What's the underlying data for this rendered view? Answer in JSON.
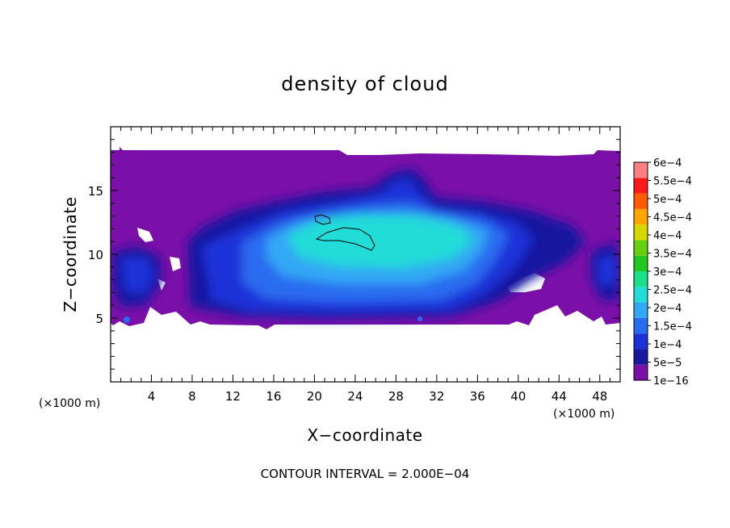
{
  "chart_data": {
    "type": "heatmap",
    "title": "density of cloud",
    "xlabel": "X−coordinate",
    "ylabel": "Z−coordinate",
    "x_unit": "(×1000 m)",
    "y_unit": "(×1000 m)",
    "xlim": [
      0,
      50
    ],
    "ylim": [
      0,
      20
    ],
    "x_ticks": [
      4,
      8,
      12,
      16,
      20,
      24,
      28,
      32,
      36,
      40,
      44,
      48
    ],
    "y_ticks": [
      5,
      10,
      15
    ],
    "footnote": "CONTOUR INTERVAL = 2.000E−04",
    "colorbar": {
      "levels": [
        "1e−16",
        "5e−5",
        "1e−4",
        "1.5e−4",
        "2e−4",
        "2.5e−4",
        "3e−4",
        "3.5e−4",
        "4e−4",
        "4.5e−4",
        "5e−4",
        "5.5e−4",
        "6e−4"
      ],
      "colors": [
        "#7a10a8",
        "#1818a0",
        "#1e30d8",
        "#2a6cf0",
        "#30a8f4",
        "#22dcd8",
        "#1ae08a",
        "#20c820",
        "#66d010",
        "#d8d800",
        "#ffa500",
        "#ff5a00",
        "#ff1a1a",
        "#ff8080"
      ]
    },
    "contour_levels": [
      0.0002
    ],
    "grid": false
  }
}
